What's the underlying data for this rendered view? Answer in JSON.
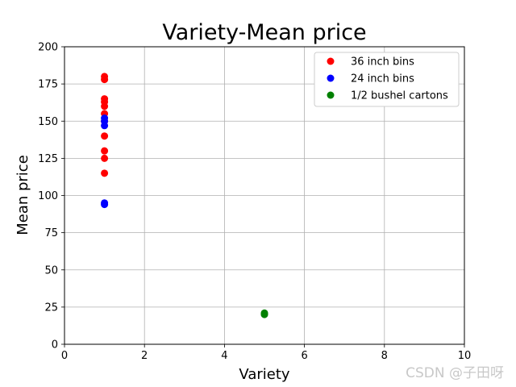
{
  "chart_data": {
    "type": "scatter",
    "title": "Variety-Mean price",
    "xlabel": "Variety",
    "ylabel": "Mean price",
    "xlim": [
      0,
      10
    ],
    "ylim": [
      0,
      200
    ],
    "xticks": [
      0,
      2,
      4,
      6,
      8,
      10
    ],
    "yticks": [
      0,
      25,
      50,
      75,
      100,
      125,
      150,
      175,
      200
    ],
    "grid": true,
    "legend_position": "top-right",
    "series": [
      {
        "name": "36 inch bins",
        "color": "#ff0000",
        "points": [
          {
            "x": 1,
            "y": 180
          },
          {
            "x": 1,
            "y": 178
          },
          {
            "x": 1,
            "y": 165
          },
          {
            "x": 1,
            "y": 163
          },
          {
            "x": 1,
            "y": 160
          },
          {
            "x": 1,
            "y": 155
          },
          {
            "x": 1,
            "y": 150
          },
          {
            "x": 1,
            "y": 140
          },
          {
            "x": 1,
            "y": 130
          },
          {
            "x": 1,
            "y": 125
          },
          {
            "x": 1,
            "y": 115
          }
        ]
      },
      {
        "name": "24 inch bins",
        "color": "#0000ff",
        "points": [
          {
            "x": 1,
            "y": 152
          },
          {
            "x": 1,
            "y": 150
          },
          {
            "x": 1,
            "y": 147
          },
          {
            "x": 1,
            "y": 95
          },
          {
            "x": 1,
            "y": 94
          }
        ]
      },
      {
        "name": "1/2 bushel cartons",
        "color": "#008000",
        "points": [
          {
            "x": 5,
            "y": 21
          },
          {
            "x": 5,
            "y": 20.5
          },
          {
            "x": 5,
            "y": 20
          }
        ]
      }
    ]
  },
  "watermark": "CSDN @子田呀"
}
